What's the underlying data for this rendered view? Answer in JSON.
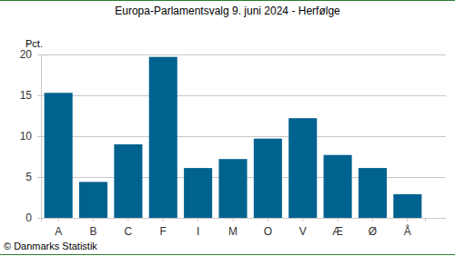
{
  "chart_data": {
    "type": "bar",
    "title": "Europa-Parlamentsvalg 9. juni 2024 - Herfølge",
    "y_label": "Pct.",
    "annotations": [
      "© Danmarks Statistik"
    ],
    "categories": [
      "A",
      "B",
      "C",
      "F",
      "I",
      "M",
      "O",
      "V",
      "Æ",
      "Ø",
      "Å"
    ],
    "values": [
      15.3,
      4.4,
      9.0,
      19.7,
      6.1,
      7.2,
      9.7,
      12.2,
      7.7,
      6.1,
      2.9
    ],
    "color": "#00628f",
    "ylim": [
      0,
      20
    ],
    "yticks": [
      0,
      5,
      10,
      15,
      20
    ],
    "grid": true
  }
}
